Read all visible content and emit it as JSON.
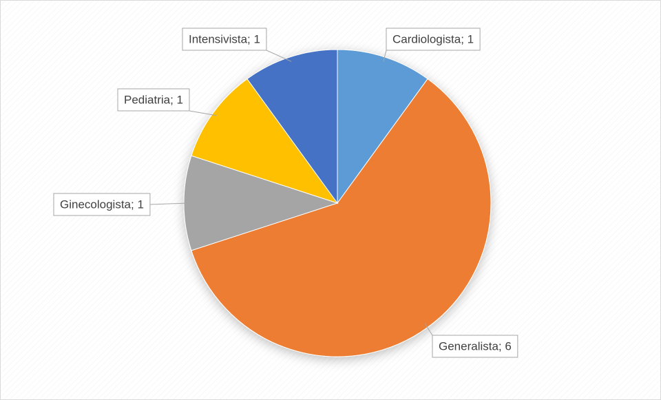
{
  "chart_data": {
    "type": "pie",
    "categories": [
      "Cardiologista",
      "Generalista",
      "Ginecologista",
      "Pediatria",
      "Intensivista"
    ],
    "values": [
      1,
      6,
      1,
      1,
      1
    ],
    "value_labels": [
      "Cardiologista; 1",
      "Generalista; 6",
      "Ginecologista; 1",
      "Pediatria; 1",
      "Intensivista; 1"
    ],
    "colors": [
      "#5b9bd5",
      "#ed7d31",
      "#a5a5a5",
      "#ffc000",
      "#4472c4"
    ]
  }
}
